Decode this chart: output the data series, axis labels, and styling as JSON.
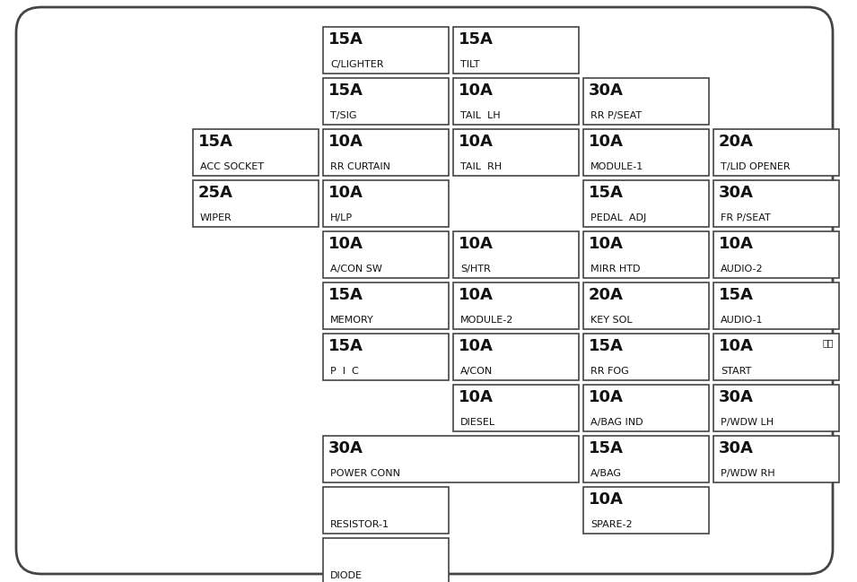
{
  "bg_color": "#ffffff",
  "box_color": "#ffffff",
  "border_color": "#444444",
  "outer_border": "#444444",
  "fuses": [
    {
      "amp": "15A",
      "label": "C/LIGHTER",
      "col": 1,
      "row": 0,
      "colspan": 1,
      "rowspan": 1
    },
    {
      "amp": "15A",
      "label": "TILT",
      "col": 2,
      "row": 0,
      "colspan": 1,
      "rowspan": 1
    },
    {
      "amp": "15A",
      "label": "T/SIG",
      "col": 1,
      "row": 1,
      "colspan": 1,
      "rowspan": 1
    },
    {
      "amp": "10A",
      "label": "TAIL  LH",
      "col": 2,
      "row": 1,
      "colspan": 1,
      "rowspan": 1
    },
    {
      "amp": "30A",
      "label": "RR P/SEAT",
      "col": 3,
      "row": 1,
      "colspan": 1,
      "rowspan": 1
    },
    {
      "amp": "15A",
      "label": "ACC SOCKET",
      "col": 0,
      "row": 2,
      "colspan": 1,
      "rowspan": 1
    },
    {
      "amp": "10A",
      "label": "RR CURTAIN",
      "col": 1,
      "row": 2,
      "colspan": 1,
      "rowspan": 1
    },
    {
      "amp": "10A",
      "label": "TAIL  RH",
      "col": 2,
      "row": 2,
      "colspan": 1,
      "rowspan": 1
    },
    {
      "amp": "10A",
      "label": "MODULE-1",
      "col": 3,
      "row": 2,
      "colspan": 1,
      "rowspan": 1
    },
    {
      "amp": "20A",
      "label": "T/LID OPENER",
      "col": 4,
      "row": 2,
      "colspan": 1,
      "rowspan": 1
    },
    {
      "amp": "25A",
      "label": "WIPER",
      "col": 0,
      "row": 3,
      "colspan": 1,
      "rowspan": 1
    },
    {
      "amp": "10A",
      "label": "H/LP",
      "col": 1,
      "row": 3,
      "colspan": 1,
      "rowspan": 1
    },
    {
      "amp": "15A",
      "label": "PEDAL  ADJ",
      "col": 3,
      "row": 3,
      "colspan": 1,
      "rowspan": 1
    },
    {
      "amp": "30A",
      "label": "FR P/SEAT",
      "col": 4,
      "row": 3,
      "colspan": 1,
      "rowspan": 1
    },
    {
      "amp": "10A",
      "label": "A/CON SW",
      "col": 1,
      "row": 4,
      "colspan": 1,
      "rowspan": 1
    },
    {
      "amp": "10A",
      "label": "S/HTR",
      "col": 2,
      "row": 4,
      "colspan": 1,
      "rowspan": 1
    },
    {
      "amp": "10A",
      "label": "MIRR HTD",
      "col": 3,
      "row": 4,
      "colspan": 1,
      "rowspan": 1
    },
    {
      "amp": "10A",
      "label": "AUDIO-2",
      "col": 4,
      "row": 4,
      "colspan": 1,
      "rowspan": 1
    },
    {
      "amp": "15A",
      "label": "MEMORY",
      "col": 1,
      "row": 5,
      "colspan": 1,
      "rowspan": 1
    },
    {
      "amp": "10A",
      "label": "MODULE-2",
      "col": 2,
      "row": 5,
      "colspan": 1,
      "rowspan": 1
    },
    {
      "amp": "20A",
      "label": "KEY SOL",
      "col": 3,
      "row": 5,
      "colspan": 1,
      "rowspan": 1
    },
    {
      "amp": "15A",
      "label": "AUDIO-1",
      "col": 4,
      "row": 5,
      "colspan": 1,
      "rowspan": 1
    },
    {
      "amp": "15A",
      "label": "P  I  C",
      "col": 1,
      "row": 6,
      "colspan": 1,
      "rowspan": 1
    },
    {
      "amp": "10A",
      "label": "A/CON",
      "col": 2,
      "row": 6,
      "colspan": 1,
      "rowspan": 1
    },
    {
      "amp": "15A",
      "label": "RR FOG",
      "col": 3,
      "row": 6,
      "colspan": 1,
      "rowspan": 1
    },
    {
      "amp": "10A",
      "label": "START",
      "col": 4,
      "row": 6,
      "colspan": 1,
      "rowspan": 1,
      "extra": "시동"
    },
    {
      "amp": "10A",
      "label": "DIESEL",
      "col": 2,
      "row": 7,
      "colspan": 1,
      "rowspan": 1
    },
    {
      "amp": "10A",
      "label": "A/BAG IND",
      "col": 3,
      "row": 7,
      "colspan": 1,
      "rowspan": 1
    },
    {
      "amp": "30A",
      "label": "P/WDW LH",
      "col": 4,
      "row": 7,
      "colspan": 1,
      "rowspan": 1
    },
    {
      "amp": "30A",
      "label": "POWER CONN",
      "col": 1,
      "row": 8,
      "colspan": 2,
      "rowspan": 1
    },
    {
      "amp": "15A",
      "label": "A/BAG",
      "col": 3,
      "row": 8,
      "colspan": 1,
      "rowspan": 1
    },
    {
      "amp": "30A",
      "label": "P/WDW RH",
      "col": 4,
      "row": 8,
      "colspan": 1,
      "rowspan": 1
    },
    {
      "amp": "",
      "label": "RESISTOR-1",
      "col": 1,
      "row": 9,
      "colspan": 1,
      "rowspan": 1
    },
    {
      "amp": "10A",
      "label": "SPARE-2",
      "col": 3,
      "row": 9,
      "colspan": 1,
      "rowspan": 1
    },
    {
      "amp": "",
      "label": "DIODE",
      "col": 1,
      "row": 10,
      "colspan": 1,
      "rowspan": 1
    }
  ],
  "amp_fontsize": 13,
  "label_fontsize": 8,
  "extra_fontsize": 7.5
}
